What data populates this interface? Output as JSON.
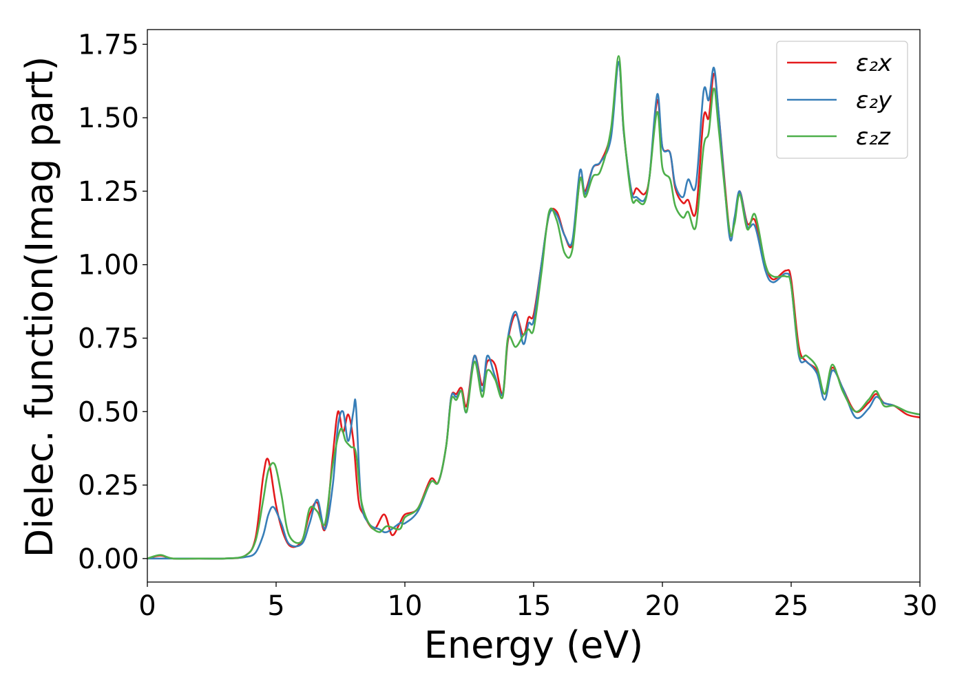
{
  "chart_data": {
    "type": "line",
    "title": "",
    "xlabel": "Energy (eV)",
    "ylabel": "Dielec. function(Imag part)",
    "xlim": [
      0,
      30
    ],
    "ylim": [
      -0.08,
      1.8
    ],
    "xticks": [
      "0",
      "5",
      "10",
      "15",
      "20",
      "25",
      "30"
    ],
    "yticks": [
      "0.00",
      "0.25",
      "0.50",
      "0.75",
      "1.00",
      "1.25",
      "1.50",
      "1.75"
    ],
    "grid": false,
    "legend_position": "top-right",
    "series": [
      {
        "name": "ε₂x",
        "color": "#e41a1c",
        "x": [
          0,
          0.5,
          1,
          2,
          3,
          3.8,
          4.2,
          4.5,
          4.7,
          5.0,
          5.3,
          5.6,
          6.0,
          6.3,
          6.6,
          6.9,
          7.2,
          7.4,
          7.6,
          7.8,
          8.0,
          8.2,
          8.4,
          8.8,
          9.2,
          9.5,
          9.8,
          10.0,
          10.5,
          11.0,
          11.3,
          11.6,
          11.8,
          12.0,
          12.2,
          12.4,
          12.7,
          13.0,
          13.2,
          13.5,
          13.8,
          14.0,
          14.3,
          14.6,
          14.8,
          15.0,
          15.3,
          15.6,
          15.9,
          16.2,
          16.5,
          16.8,
          17.0,
          17.3,
          17.6,
          18.0,
          18.3,
          18.5,
          18.8,
          19.0,
          19.3,
          19.5,
          19.8,
          20.0,
          20.3,
          20.5,
          20.8,
          21.0,
          21.3,
          21.6,
          21.8,
          22.0,
          22.2,
          22.6,
          22.8,
          23.0,
          23.3,
          23.6,
          24.0,
          24.3,
          24.8,
          25.0,
          25.3,
          25.6,
          26.0,
          26.3,
          26.6,
          27.0,
          27.5,
          28.0,
          28.3,
          28.6,
          29.0,
          29.5,
          30.0
        ],
        "values": [
          0.0,
          0.01,
          0.0,
          0.0,
          0.0,
          0.01,
          0.07,
          0.28,
          0.335,
          0.18,
          0.08,
          0.04,
          0.06,
          0.15,
          0.19,
          0.1,
          0.35,
          0.5,
          0.43,
          0.49,
          0.4,
          0.2,
          0.15,
          0.1,
          0.15,
          0.08,
          0.12,
          0.15,
          0.17,
          0.27,
          0.26,
          0.38,
          0.55,
          0.56,
          0.58,
          0.52,
          0.69,
          0.59,
          0.67,
          0.66,
          0.56,
          0.74,
          0.83,
          0.76,
          0.82,
          0.83,
          1.0,
          1.17,
          1.18,
          1.1,
          1.07,
          1.29,
          1.25,
          1.33,
          1.35,
          1.45,
          1.69,
          1.45,
          1.25,
          1.26,
          1.24,
          1.3,
          1.56,
          1.4,
          1.38,
          1.26,
          1.21,
          1.22,
          1.18,
          1.5,
          1.5,
          1.65,
          1.5,
          1.12,
          1.15,
          1.25,
          1.14,
          1.15,
          1.0,
          0.95,
          0.98,
          0.95,
          0.72,
          0.67,
          0.64,
          0.56,
          0.65,
          0.58,
          0.5,
          0.53,
          0.56,
          0.53,
          0.52,
          0.49,
          0.48
        ]
      },
      {
        "name": "ε₂y",
        "color": "#377eb8",
        "x": [
          0,
          0.5,
          1,
          2,
          3,
          3.8,
          4.2,
          4.5,
          4.7,
          4.9,
          5.2,
          5.5,
          6.0,
          6.3,
          6.6,
          6.9,
          7.2,
          7.4,
          7.6,
          7.8,
          8.0,
          8.1,
          8.3,
          8.6,
          9.0,
          9.3,
          9.8,
          10.0,
          10.5,
          11.0,
          11.3,
          11.6,
          11.8,
          12.0,
          12.2,
          12.4,
          12.7,
          13.0,
          13.2,
          13.5,
          13.8,
          14.0,
          14.3,
          14.6,
          14.8,
          15.0,
          15.3,
          15.6,
          15.9,
          16.2,
          16.5,
          16.8,
          17.0,
          17.3,
          17.6,
          18.0,
          18.3,
          18.5,
          18.8,
          19.0,
          19.3,
          19.5,
          19.8,
          20.0,
          20.3,
          20.5,
          20.8,
          21.0,
          21.3,
          21.6,
          21.8,
          22.0,
          22.2,
          22.6,
          22.8,
          23.0,
          23.3,
          23.6,
          24.0,
          24.3,
          24.8,
          25.0,
          25.3,
          25.6,
          26.0,
          26.3,
          26.6,
          27.0,
          27.5,
          28.0,
          28.3,
          28.6,
          29.0,
          29.5,
          30.0
        ],
        "values": [
          0.0,
          0.0,
          0.0,
          0.0,
          0.0,
          0.005,
          0.02,
          0.08,
          0.15,
          0.175,
          0.12,
          0.05,
          0.05,
          0.12,
          0.2,
          0.1,
          0.25,
          0.45,
          0.5,
          0.4,
          0.5,
          0.52,
          0.2,
          0.12,
          0.1,
          0.09,
          0.12,
          0.12,
          0.16,
          0.26,
          0.26,
          0.38,
          0.55,
          0.55,
          0.57,
          0.5,
          0.69,
          0.57,
          0.69,
          0.62,
          0.56,
          0.75,
          0.84,
          0.73,
          0.8,
          0.81,
          1.0,
          1.17,
          1.17,
          1.1,
          1.08,
          1.32,
          1.24,
          1.33,
          1.35,
          1.43,
          1.69,
          1.45,
          1.25,
          1.23,
          1.22,
          1.3,
          1.58,
          1.4,
          1.38,
          1.27,
          1.23,
          1.29,
          1.27,
          1.59,
          1.56,
          1.67,
          1.5,
          1.1,
          1.16,
          1.25,
          1.13,
          1.13,
          0.98,
          0.94,
          0.97,
          0.93,
          0.69,
          0.67,
          0.63,
          0.54,
          0.64,
          0.58,
          0.48,
          0.51,
          0.55,
          0.53,
          0.52,
          0.5,
          0.49
        ]
      },
      {
        "name": "ε₂z",
        "color": "#4daf4a",
        "x": [
          0,
          0.5,
          1,
          2,
          3,
          3.8,
          4.2,
          4.5,
          4.7,
          4.95,
          5.2,
          5.5,
          6.0,
          6.3,
          6.6,
          6.9,
          7.2,
          7.5,
          7.7,
          7.9,
          8.1,
          8.3,
          8.6,
          9.0,
          9.3,
          9.8,
          10.0,
          10.5,
          11.0,
          11.3,
          11.6,
          11.8,
          12.0,
          12.2,
          12.4,
          12.7,
          13.0,
          13.2,
          13.5,
          13.8,
          14.0,
          14.3,
          14.6,
          14.8,
          15.0,
          15.3,
          15.6,
          15.9,
          16.2,
          16.5,
          16.8,
          17.0,
          17.3,
          17.6,
          18.0,
          18.3,
          18.5,
          18.8,
          19.0,
          19.3,
          19.5,
          19.8,
          20.0,
          20.3,
          20.5,
          20.8,
          21.0,
          21.3,
          21.6,
          21.8,
          22.0,
          22.2,
          22.6,
          22.8,
          23.0,
          23.3,
          23.6,
          24.0,
          24.3,
          24.8,
          25.0,
          25.3,
          25.6,
          26.0,
          26.3,
          26.6,
          27.0,
          27.5,
          28.0,
          28.3,
          28.6,
          29.0,
          29.5,
          30.0
        ],
        "values": [
          0.0,
          0.012,
          0.0,
          0.0,
          0.0,
          0.01,
          0.06,
          0.2,
          0.3,
          0.32,
          0.22,
          0.08,
          0.06,
          0.17,
          0.16,
          0.12,
          0.32,
          0.44,
          0.4,
          0.38,
          0.36,
          0.2,
          0.12,
          0.09,
          0.11,
          0.1,
          0.14,
          0.17,
          0.26,
          0.26,
          0.38,
          0.54,
          0.54,
          0.57,
          0.5,
          0.67,
          0.55,
          0.64,
          0.61,
          0.55,
          0.75,
          0.72,
          0.76,
          0.78,
          0.78,
          0.97,
          1.18,
          1.15,
          1.04,
          1.05,
          1.29,
          1.23,
          1.3,
          1.32,
          1.46,
          1.71,
          1.46,
          1.23,
          1.22,
          1.21,
          1.3,
          1.52,
          1.33,
          1.29,
          1.2,
          1.16,
          1.18,
          1.13,
          1.4,
          1.45,
          1.6,
          1.45,
          1.12,
          1.14,
          1.24,
          1.12,
          1.17,
          1.0,
          0.96,
          0.96,
          0.93,
          0.7,
          0.69,
          0.65,
          0.56,
          0.66,
          0.57,
          0.5,
          0.54,
          0.57,
          0.52,
          0.52,
          0.5,
          0.49
        ]
      }
    ]
  }
}
